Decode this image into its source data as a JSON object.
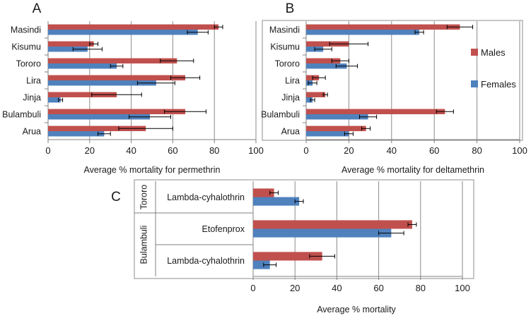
{
  "chart_data": [
    {
      "panel": "A",
      "type": "bar",
      "orientation": "horizontal",
      "categories": [
        "Masindi",
        "Kisumu",
        "Tororo",
        "Lira",
        "Jinja",
        "Bulambuli",
        "Arua"
      ],
      "series": [
        {
          "name": "Males",
          "color": "#c0504d",
          "values": [
            82,
            22,
            62,
            66,
            33,
            66,
            47
          ],
          "errors": [
            2,
            2,
            8,
            7,
            12,
            10,
            13
          ]
        },
        {
          "name": "Females",
          "color": "#4f81bd",
          "values": [
            72,
            19,
            33,
            52,
            6,
            49,
            27
          ],
          "errors": [
            5,
            7,
            3,
            9,
            1,
            10,
            3
          ]
        }
      ],
      "xlabel": "Average % mortality for permethrin",
      "xlim": [
        0,
        100
      ],
      "xticks": [
        "0",
        "20",
        "40",
        "60",
        "80",
        "100"
      ],
      "grid": true
    },
    {
      "panel": "B",
      "type": "bar",
      "orientation": "horizontal",
      "categories": [
        "Masindi",
        "Kisumu",
        "Tororo",
        "Lira",
        "Jinja",
        "Bulambuli",
        "Arua"
      ],
      "series": [
        {
          "name": "Males",
          "color": "#c0504d",
          "values": [
            72,
            20,
            16,
            6,
            9,
            65,
            28
          ],
          "errors": [
            6,
            9,
            4,
            3,
            1,
            4,
            2
          ]
        },
        {
          "name": "Females",
          "color": "#4f81bd",
          "values": [
            53,
            8,
            19,
            3,
            3,
            29,
            20
          ],
          "errors": [
            2,
            4,
            5,
            2,
            1,
            4,
            2
          ]
        }
      ],
      "xlabel": "Average % mortality for deltamethrin",
      "xlim": [
        0,
        100
      ],
      "xticks": [
        "0",
        "20",
        "40",
        "60",
        "80",
        "100"
      ],
      "grid": true,
      "legend": {
        "placement": "right",
        "entries": [
          "Males",
          "Females"
        ]
      }
    },
    {
      "panel": "C",
      "type": "bar",
      "orientation": "horizontal",
      "groups": [
        "Tororo",
        "Bulambuli"
      ],
      "categories": [
        "Lambda-cyhalothrin",
        "Etofenprox",
        "Lambda-cyhalothrin"
      ],
      "category_groups": [
        "Tororo",
        "Bulambuli",
        "Bulambuli"
      ],
      "series": [
        {
          "name": "Males",
          "color": "#c0504d",
          "values": [
            10,
            76,
            33
          ],
          "errors": [
            2,
            2,
            6
          ]
        },
        {
          "name": "Females",
          "color": "#4f81bd",
          "values": [
            22,
            66,
            8
          ],
          "errors": [
            2,
            6,
            3
          ]
        }
      ],
      "xlabel": "Average % mortality",
      "xlim": [
        0,
        100
      ],
      "xticks": [
        "0",
        "20",
        "40",
        "60",
        "80",
        "100"
      ],
      "grid": true
    }
  ]
}
